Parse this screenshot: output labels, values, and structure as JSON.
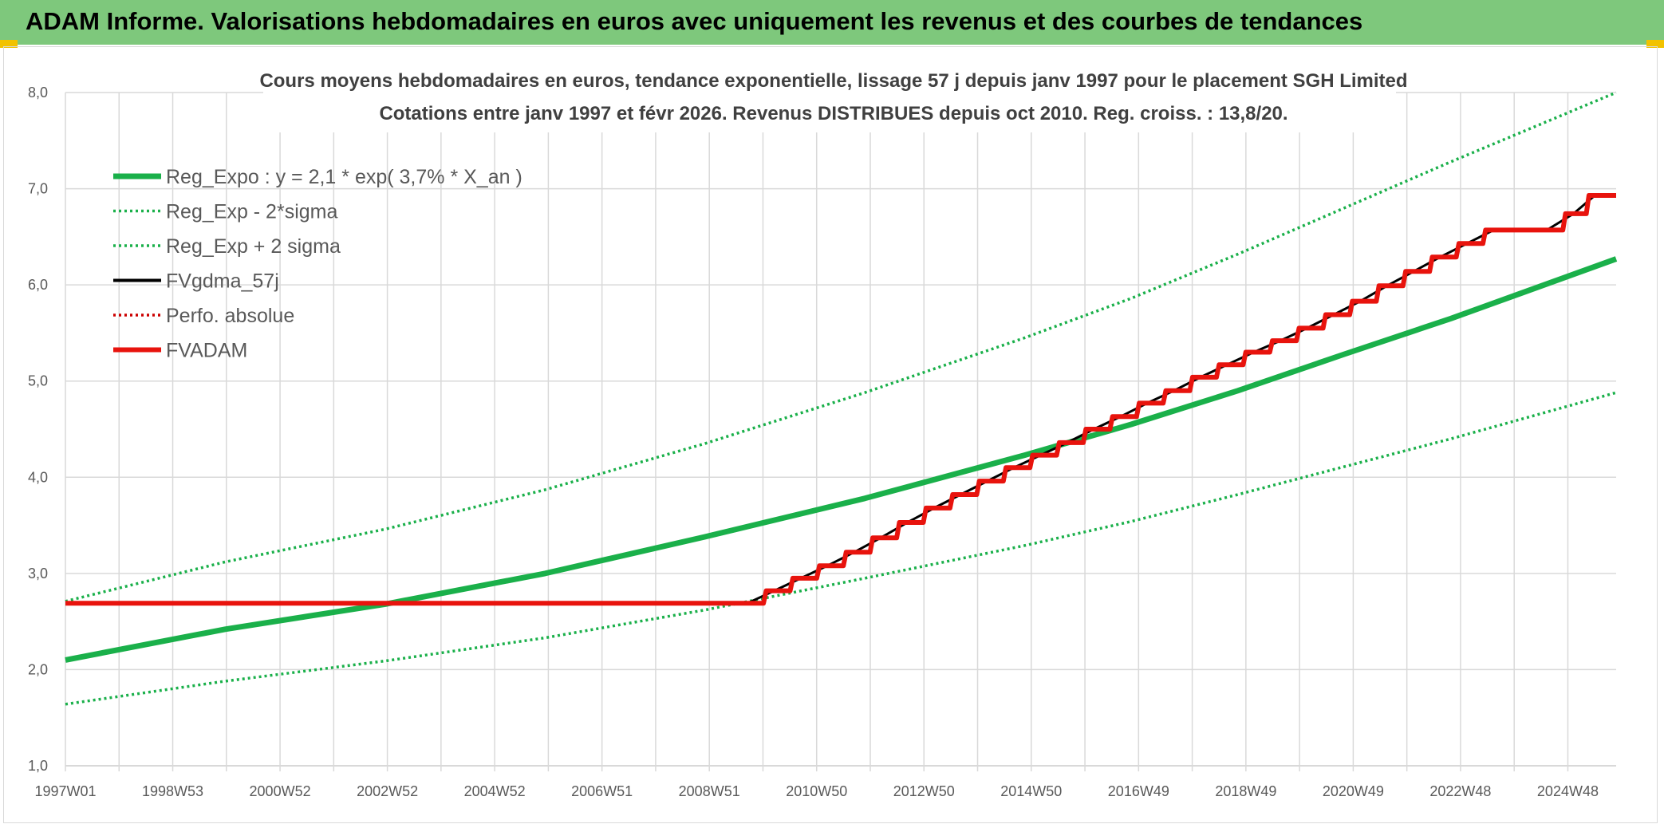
{
  "header": {
    "title": "ADAM Informe. Valorisations hebdomadaires en euros avec uniquement les revenus et des courbes de tendances"
  },
  "colors": {
    "header_bg": "#7ec87c",
    "trend": "#1ab04a",
    "fvgdma": "#000000",
    "perfo": "#cc0000",
    "fvadam": "#e8130d",
    "grid": "#d9d9d9"
  },
  "chart_data": {
    "type": "line",
    "title_lines": [
      "Cours moyens hebdomadaires en euros, tendance exponentielle, lissage 57 j depuis janv 1997 pour le placement SGH Limited",
      "Cotations entre janv 1997 et févr 2026. Revenus DISTRIBUES depuis oct 2010. Reg. croiss. : 13,8/20."
    ],
    "xlabel": "",
    "ylabel": "",
    "x_range": [
      1997.0,
      2026.1
    ],
    "ylim": [
      1.0,
      8.0
    ],
    "y_ticks": [
      "1,0",
      "2,0",
      "3,0",
      "4,0",
      "5,0",
      "6,0",
      "7,0",
      "8,0"
    ],
    "x_ticks": [
      "1997W01",
      "1998W53",
      "2000W52",
      "2002W52",
      "2004W52",
      "2006W51",
      "2008W51",
      "2010W50",
      "2012W50",
      "2014W50",
      "2016W49",
      "2018W49",
      "2020W49",
      "2022W48",
      "2024W48"
    ],
    "grid": true,
    "legend_position": "top-left",
    "series": [
      {
        "name": "Reg_Expo : y = 2,1 * exp( 3,7% *  X_an )",
        "style": "solid-thick",
        "color": "#1ab04a",
        "points": [
          [
            1997.0,
            2.1
          ],
          [
            2000.0,
            2.42
          ],
          [
            2003.0,
            2.68
          ],
          [
            2006.0,
            3.0
          ],
          [
            2009.0,
            3.38
          ],
          [
            2012.0,
            3.78
          ],
          [
            2015.0,
            4.23
          ],
          [
            2017.0,
            4.55
          ],
          [
            2019.0,
            4.9
          ],
          [
            2021.0,
            5.28
          ],
          [
            2023.0,
            5.65
          ],
          [
            2026.1,
            6.27
          ]
        ]
      },
      {
        "name": "Reg_Exp - 2*sigma",
        "style": "dotted",
        "color": "#1ab04a",
        "points": [
          [
            1997.0,
            1.64
          ],
          [
            2000.0,
            1.88
          ],
          [
            2003.0,
            2.09
          ],
          [
            2006.0,
            2.33
          ],
          [
            2009.0,
            2.62
          ],
          [
            2012.0,
            2.95
          ],
          [
            2015.0,
            3.29
          ],
          [
            2017.0,
            3.54
          ],
          [
            2019.0,
            3.82
          ],
          [
            2021.0,
            4.11
          ],
          [
            2023.0,
            4.4
          ],
          [
            2026.1,
            4.88
          ]
        ]
      },
      {
        "name": "Reg_Exp + 2 sigma",
        "style": "dotted",
        "color": "#1ab04a",
        "points": [
          [
            1997.0,
            2.71
          ],
          [
            2000.0,
            3.12
          ],
          [
            2003.0,
            3.46
          ],
          [
            2006.0,
            3.87
          ],
          [
            2009.0,
            4.35
          ],
          [
            2012.0,
            4.88
          ],
          [
            2015.0,
            5.45
          ],
          [
            2017.0,
            5.86
          ],
          [
            2019.0,
            6.32
          ],
          [
            2021.0,
            6.8
          ],
          [
            2023.0,
            7.28
          ],
          [
            2026.1,
            8.0
          ]
        ]
      },
      {
        "name": "FVgdma_57j",
        "style": "solid",
        "color": "#000000",
        "points": [
          [
            1997.0,
            2.69
          ],
          [
            2009.8,
            2.69
          ],
          [
            2010.3,
            2.82
          ],
          [
            2010.8,
            2.95
          ],
          [
            2011.3,
            3.08
          ],
          [
            2011.8,
            3.22
          ],
          [
            2012.3,
            3.37
          ],
          [
            2012.8,
            3.53
          ],
          [
            2013.3,
            3.68
          ],
          [
            2013.8,
            3.82
          ],
          [
            2014.3,
            3.96
          ],
          [
            2014.8,
            4.1
          ],
          [
            2015.3,
            4.23
          ],
          [
            2015.8,
            4.36
          ],
          [
            2016.3,
            4.5
          ],
          [
            2016.8,
            4.63
          ],
          [
            2017.3,
            4.77
          ],
          [
            2017.8,
            4.9
          ],
          [
            2018.3,
            5.04
          ],
          [
            2018.8,
            5.17
          ],
          [
            2019.3,
            5.3
          ],
          [
            2019.8,
            5.42
          ],
          [
            2020.3,
            5.55
          ],
          [
            2020.8,
            5.69
          ],
          [
            2021.3,
            5.83
          ],
          [
            2021.8,
            5.99
          ],
          [
            2022.3,
            6.14
          ],
          [
            2022.8,
            6.29
          ],
          [
            2023.3,
            6.43
          ],
          [
            2023.8,
            6.57
          ],
          [
            2024.8,
            6.57
          ],
          [
            2025.3,
            6.74
          ],
          [
            2025.7,
            6.93
          ],
          [
            2026.1,
            6.93
          ]
        ]
      },
      {
        "name": "Perfo. absolue",
        "style": "dotted",
        "color": "#cc0000",
        "points": []
      },
      {
        "name": "FVADAM",
        "style": "solid-thick-step",
        "color": "#e8130d",
        "points": [
          [
            1997.0,
            2.69
          ],
          [
            2009.8,
            2.69
          ],
          [
            2010.3,
            2.82
          ],
          [
            2010.8,
            2.95
          ],
          [
            2011.3,
            3.08
          ],
          [
            2011.8,
            3.22
          ],
          [
            2012.3,
            3.37
          ],
          [
            2012.8,
            3.53
          ],
          [
            2013.3,
            3.68
          ],
          [
            2013.8,
            3.82
          ],
          [
            2014.3,
            3.96
          ],
          [
            2014.8,
            4.1
          ],
          [
            2015.3,
            4.23
          ],
          [
            2015.8,
            4.36
          ],
          [
            2016.3,
            4.5
          ],
          [
            2016.8,
            4.63
          ],
          [
            2017.3,
            4.77
          ],
          [
            2017.8,
            4.9
          ],
          [
            2018.3,
            5.04
          ],
          [
            2018.8,
            5.17
          ],
          [
            2019.3,
            5.3
          ],
          [
            2019.8,
            5.42
          ],
          [
            2020.3,
            5.55
          ],
          [
            2020.8,
            5.69
          ],
          [
            2021.3,
            5.83
          ],
          [
            2021.8,
            5.99
          ],
          [
            2022.3,
            6.14
          ],
          [
            2022.8,
            6.29
          ],
          [
            2023.3,
            6.43
          ],
          [
            2023.8,
            6.57
          ],
          [
            2024.8,
            6.57
          ],
          [
            2025.3,
            6.74
          ],
          [
            2025.7,
            6.93
          ],
          [
            2026.1,
            6.93
          ]
        ]
      }
    ]
  }
}
